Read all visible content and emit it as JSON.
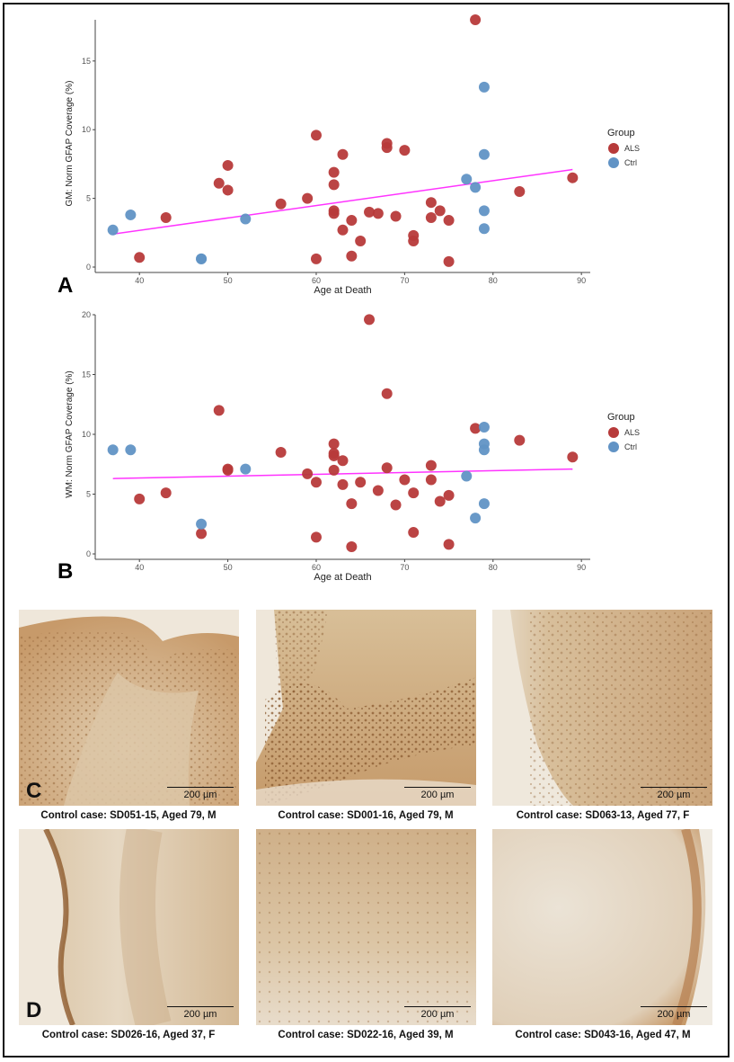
{
  "colors": {
    "ALS": "#b73a3a",
    "Ctrl": "#6193c5",
    "trend": "#ff33ff",
    "axis": "#444444"
  },
  "legend": {
    "title": "Group",
    "items": [
      "ALS",
      "Ctrl"
    ]
  },
  "chart_data": [
    {
      "panel": "A",
      "type": "scatter",
      "xlabel": "Age at Death",
      "ylabel": "GM: Norm GFAP Coverage (%)",
      "xlim": [
        35,
        91
      ],
      "ylim": [
        0,
        18
      ],
      "xticks": [
        40,
        50,
        60,
        70,
        80,
        90
      ],
      "yticks": [
        0,
        5,
        10,
        15
      ],
      "trendline": {
        "x": [
          37,
          89
        ],
        "y": [
          2.4,
          7.1
        ]
      },
      "series": [
        {
          "name": "ALS",
          "x": [
            40,
            43,
            49,
            50,
            50,
            56,
            59,
            60,
            60,
            62,
            62,
            62,
            62,
            63,
            63,
            64,
            64,
            65,
            66,
            67,
            68,
            68,
            69,
            70,
            71,
            71,
            73,
            73,
            74,
            75,
            75,
            78,
            83,
            89
          ],
          "y": [
            0.7,
            3.6,
            6.1,
            7.4,
            5.6,
            4.6,
            5.0,
            9.6,
            0.6,
            6.9,
            6.0,
            4.1,
            3.9,
            8.2,
            2.7,
            3.4,
            0.8,
            1.9,
            4.0,
            3.9,
            9.0,
            8.7,
            3.7,
            8.5,
            2.3,
            1.9,
            4.7,
            3.6,
            4.1,
            3.4,
            0.4,
            18.0,
            5.5,
            6.5
          ]
        },
        {
          "name": "Ctrl",
          "x": [
            37,
            39,
            47,
            47,
            52,
            77,
            78,
            79,
            79,
            79,
            79
          ],
          "y": [
            2.7,
            3.8,
            0.6,
            0.6,
            3.5,
            6.4,
            5.8,
            13.1,
            8.2,
            4.1,
            2.8
          ]
        }
      ]
    },
    {
      "panel": "B",
      "type": "scatter",
      "xlabel": "Age at Death",
      "ylabel": "WM: Norm GFAP Coverage (%)",
      "xlim": [
        35,
        91
      ],
      "ylim": [
        0,
        20
      ],
      "xticks": [
        40,
        50,
        60,
        70,
        80,
        90
      ],
      "yticks": [
        0,
        5,
        10,
        15,
        20
      ],
      "trendline": {
        "x": [
          37,
          89
        ],
        "y": [
          6.3,
          7.1
        ]
      },
      "series": [
        {
          "name": "ALS",
          "x": [
            40,
            43,
            47,
            49,
            50,
            50,
            56,
            59,
            60,
            60,
            62,
            62,
            62,
            62,
            63,
            63,
            64,
            64,
            65,
            66,
            67,
            68,
            68,
            69,
            70,
            71,
            71,
            73,
            73,
            74,
            75,
            75,
            78,
            83,
            89
          ],
          "y": [
            4.6,
            5.1,
            1.7,
            12.0,
            7.1,
            7.0,
            8.5,
            6.7,
            6.0,
            1.4,
            9.2,
            8.4,
            8.2,
            7.0,
            7.8,
            5.8,
            4.2,
            0.6,
            6.0,
            19.6,
            5.3,
            13.4,
            7.2,
            4.1,
            6.2,
            5.1,
            1.8,
            7.4,
            6.2,
            4.4,
            4.9,
            0.8,
            10.5,
            9.5,
            8.1
          ]
        },
        {
          "name": "Ctrl",
          "x": [
            37,
            39,
            47,
            52,
            77,
            78,
            79,
            79,
            79,
            79
          ],
          "y": [
            8.7,
            8.7,
            2.5,
            7.1,
            6.5,
            3.0,
            10.6,
            9.2,
            8.7,
            4.2
          ]
        }
      ]
    }
  ],
  "panels": {
    "a": "A",
    "b": "B",
    "c": "C",
    "d": "D"
  },
  "micrographs": [
    {
      "caption": "Control case: SD051-15, Aged 79, M",
      "scale": "200 µm"
    },
    {
      "caption": "Control case: SD001-16, Aged 79, M",
      "scale": "200 µm"
    },
    {
      "caption": "Control case: SD063-13, Aged 77, F",
      "scale": "200 µm"
    },
    {
      "caption": "Control case: SD026-16, Aged 37, F",
      "scale": "200 µm"
    },
    {
      "caption": "Control case: SD022-16, Aged 39, M",
      "scale": "200 µm"
    },
    {
      "caption": "Control case: SD043-16, Aged 47, M",
      "scale": "200 µm"
    }
  ]
}
